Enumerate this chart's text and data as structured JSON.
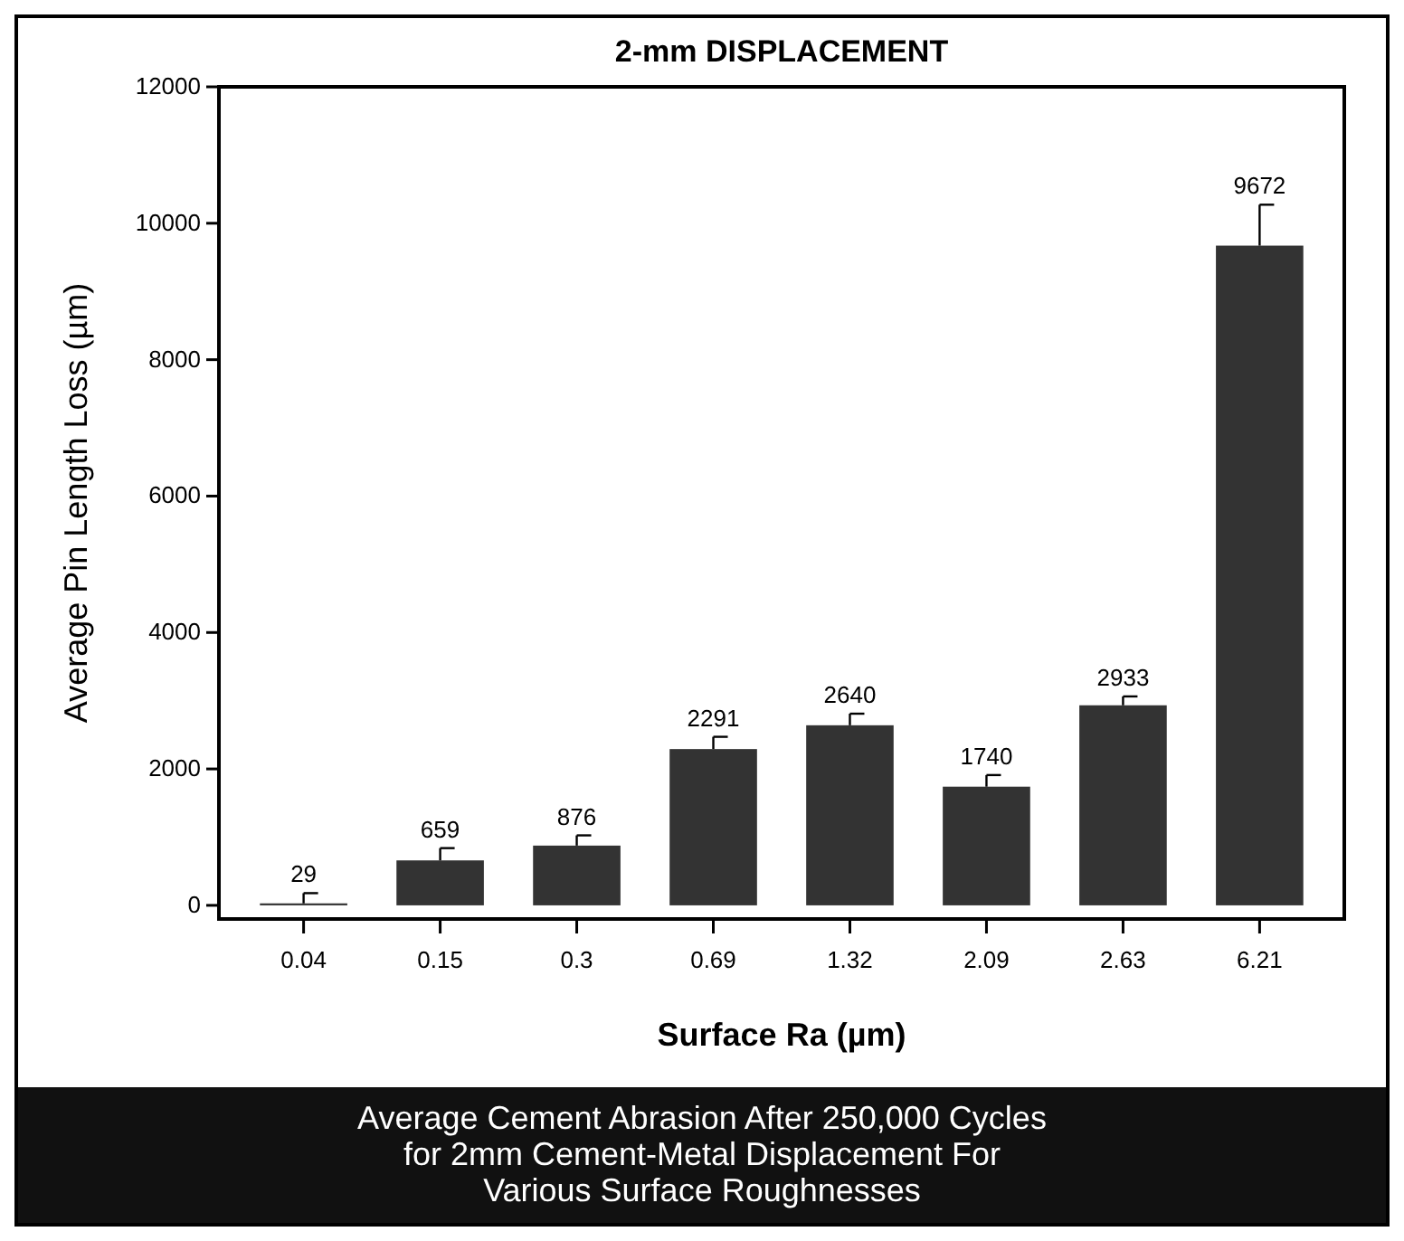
{
  "chart_data": {
    "type": "bar",
    "title": "2-mm DISPLACEMENT",
    "xlabel": "Surface Ra (µm)",
    "ylabel": "Average Pin Length Loss (µm)",
    "categories": [
      "0.04",
      "0.15",
      "0.3",
      "0.69",
      "1.32",
      "2.09",
      "2.63",
      "6.21"
    ],
    "values": [
      29,
      659,
      876,
      2291,
      2640,
      1740,
      2933,
      9672
    ],
    "errors": [
      150,
      180,
      150,
      180,
      170,
      170,
      130,
      600
    ],
    "color": "#333333",
    "data_labels": true,
    "ylim": [
      -200,
      12000
    ],
    "yticks": [
      0,
      2000,
      4000,
      6000,
      8000,
      10000,
      12000
    ],
    "annotations": [
      "Average Cement Abrasion After 250,000 Cycles\nfor 2mm Cement-Metal Displacement For\nVarious Surface Roughnesses"
    ]
  }
}
